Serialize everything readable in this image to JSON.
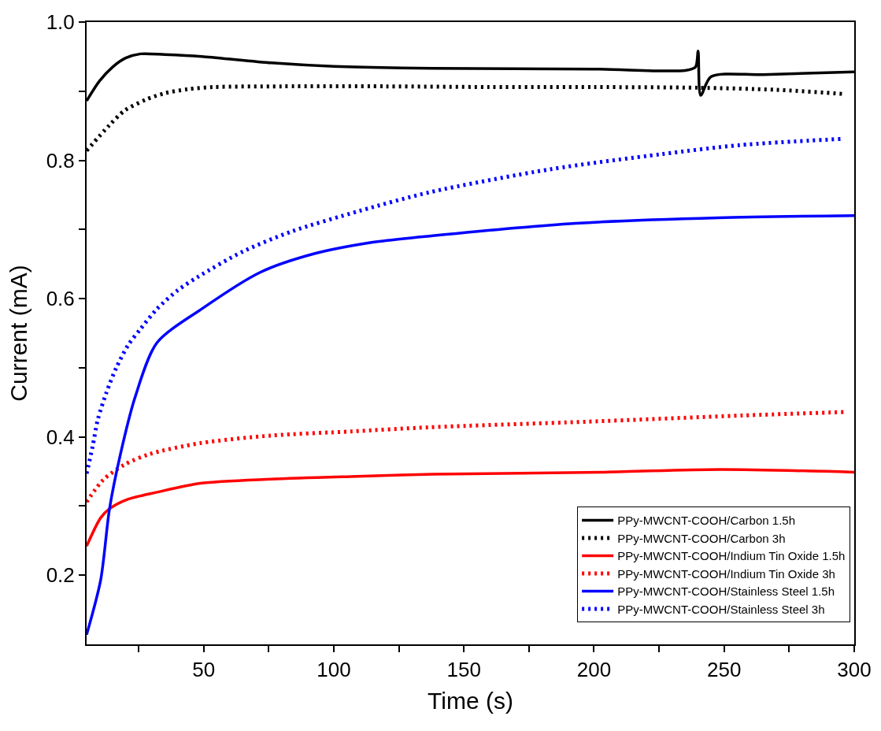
{
  "chart_data": {
    "type": "line",
    "xlabel": "Time (s)",
    "ylabel": "Current (mA)",
    "xlim": [
      5,
      300
    ],
    "ylim": [
      0.1,
      1.0
    ],
    "xticks": [
      {
        "value": 25,
        "label": null
      },
      50,
      {
        "value": 75,
        "label": null
      },
      100,
      {
        "value": 125,
        "label": null
      },
      150,
      {
        "value": 175,
        "label": null
      },
      200,
      {
        "value": 225,
        "label": null
      },
      250,
      {
        "value": 275,
        "label": null
      },
      300
    ],
    "yticks": [
      0.2,
      {
        "value": 0.3,
        "label": null
      },
      0.4,
      {
        "value": 0.5,
        "label": null
      },
      0.6,
      {
        "value": 0.7,
        "label": null
      },
      0.8,
      {
        "value": 0.9,
        "label": null
      },
      {
        "value": 1.0,
        "label": "1.0"
      }
    ],
    "legend": "bottom right",
    "marker": "none",
    "series": [
      {
        "name": "PPy-MWCNT-COOH/Carbon 1.5h",
        "color": "#000000",
        "line_style": "solid",
        "x": [
          5,
          10,
          15,
          20,
          25.7,
          35,
          50,
          76,
          100,
          138,
          200,
          235,
          239,
          240,
          241,
          245,
          265,
          300
        ],
        "values": [
          0.886,
          0.915,
          0.935,
          0.948,
          0.954,
          0.953,
          0.95,
          0.941,
          0.936,
          0.933,
          0.932,
          0.93,
          0.935,
          0.958,
          0.894,
          0.921,
          0.924,
          0.928
        ]
      },
      {
        "name": "PPy-MWCNT-COOH/Carbon 3h",
        "color": "#000000",
        "line_style": "dotted",
        "x": [
          5,
          13.8,
          19.6,
          27.9,
          35,
          44,
          54,
          80,
          120,
          160,
          200,
          240,
          270,
          296
        ],
        "values": [
          0.814,
          0.851,
          0.872,
          0.888,
          0.897,
          0.903,
          0.906,
          0.907,
          0.907,
          0.906,
          0.906,
          0.905,
          0.902,
          0.896
        ]
      },
      {
        "name": "PPy-MWCNT-COOH/Indium Tin Oxide 1.5h",
        "color": "#ff0000",
        "line_style": "solid",
        "x": [
          5,
          10.4,
          13.8,
          21,
          32,
          48.7,
          76,
          109,
          138,
          204,
          248,
          300
        ],
        "values": [
          0.242,
          0.283,
          0.296,
          0.31,
          0.32,
          0.333,
          0.339,
          0.343,
          0.346,
          0.349,
          0.353,
          0.349
        ]
      },
      {
        "name": "PPy-MWCNT-COOH/Indium Tin Oxide 3h",
        "color": "#ff0000",
        "line_style": "dotted",
        "x": [
          5,
          11.4,
          19.6,
          29,
          48.7,
          76,
          107,
          137,
          197,
          257,
          296
        ],
        "values": [
          0.306,
          0.338,
          0.36,
          0.375,
          0.391,
          0.402,
          0.408,
          0.414,
          0.422,
          0.431,
          0.436
        ]
      },
      {
        "name": "PPy-MWCNT-COOH/Stainless Steel 1.5h",
        "color": "#0000ff",
        "line_style": "solid",
        "x": [
          5,
          10.4,
          13.8,
          18,
          23.6,
          32,
          49.6,
          71.7,
          92.5,
          114,
          138,
          193,
          247.6,
          300
        ],
        "values": [
          0.114,
          0.193,
          0.296,
          0.375,
          0.457,
          0.536,
          0.586,
          0.638,
          0.665,
          0.681,
          0.691,
          0.709,
          0.717,
          0.72
        ]
      },
      {
        "name": "PPy-MWCNT-COOH/Stainless Steel 3h",
        "color": "#0000ff",
        "line_style": "dotted",
        "x": [
          5,
          7.3,
          9.3,
          12.6,
          16.4,
          21,
          25.7,
          32,
          40,
          48,
          65,
          83.7,
          110,
          137,
          183,
          226,
          256,
          295
        ],
        "values": [
          0.347,
          0.386,
          0.425,
          0.464,
          0.5,
          0.533,
          0.556,
          0.585,
          0.612,
          0.632,
          0.668,
          0.697,
          0.727,
          0.754,
          0.787,
          0.809,
          0.822,
          0.831
        ]
      }
    ]
  }
}
